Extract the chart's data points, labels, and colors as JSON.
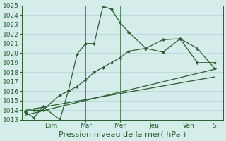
{
  "xlabel": "Pression niveau de la mer( hPa )",
  "ylim": [
    1013,
    1025
  ],
  "day_labels": [
    "Dim",
    "Mar",
    "Mer",
    "Jeu",
    "Ven",
    "S"
  ],
  "background_color": "#d4ecea",
  "grid_color": "#b8d8d8",
  "line_color": "#2a6030",
  "series1_x": [
    0,
    0.5,
    1,
    2,
    2.5,
    3,
    3.5,
    4,
    4.5,
    5,
    5.5,
    6,
    7,
    8,
    9,
    10,
    11
  ],
  "series1_y": [
    1013.8,
    1013.2,
    1014.4,
    1013.0,
    1016.1,
    1019.9,
    1021.0,
    1021.0,
    1024.9,
    1024.6,
    1023.2,
    1022.2,
    1020.5,
    1020.1,
    1021.5,
    1019.0,
    1019.0
  ],
  "series1_markers": [
    true,
    true,
    true,
    true,
    true,
    true,
    true,
    true,
    true,
    true,
    true,
    true,
    true,
    true,
    true,
    true,
    true
  ],
  "series2_x": [
    0,
    0.5,
    1,
    2,
    2.5,
    3,
    3.5,
    4,
    4.5,
    5,
    5.5,
    6,
    7,
    8,
    9,
    10,
    11
  ],
  "series2_y": [
    1013.9,
    1014.0,
    1014.0,
    1015.6,
    1016.0,
    1016.5,
    1017.2,
    1018.0,
    1018.5,
    1019.0,
    1019.5,
    1020.2,
    1020.5,
    1021.4,
    1021.5,
    1020.5,
    1018.4
  ],
  "series2_markers": [
    false,
    false,
    false,
    false,
    true,
    true,
    true,
    true,
    true,
    true,
    true,
    true,
    true,
    true,
    true,
    true,
    true
  ],
  "series3_x": [
    0,
    11
  ],
  "series3_y": [
    1013.5,
    1018.3
  ],
  "series4_x": [
    0,
    11
  ],
  "series4_y": [
    1014.0,
    1017.5
  ],
  "day_tick_positions": [
    1.5,
    3.5,
    5.5,
    7.5,
    9.5,
    11.0
  ],
  "day_separator_positions": [
    1.5,
    3.5,
    5.5,
    7.5,
    9.5
  ],
  "xlabel_fontsize": 8,
  "tick_fontsize": 6.5,
  "marker": "D",
  "marker_size": 2.0,
  "xlim": [
    -0.2,
    11.5
  ]
}
